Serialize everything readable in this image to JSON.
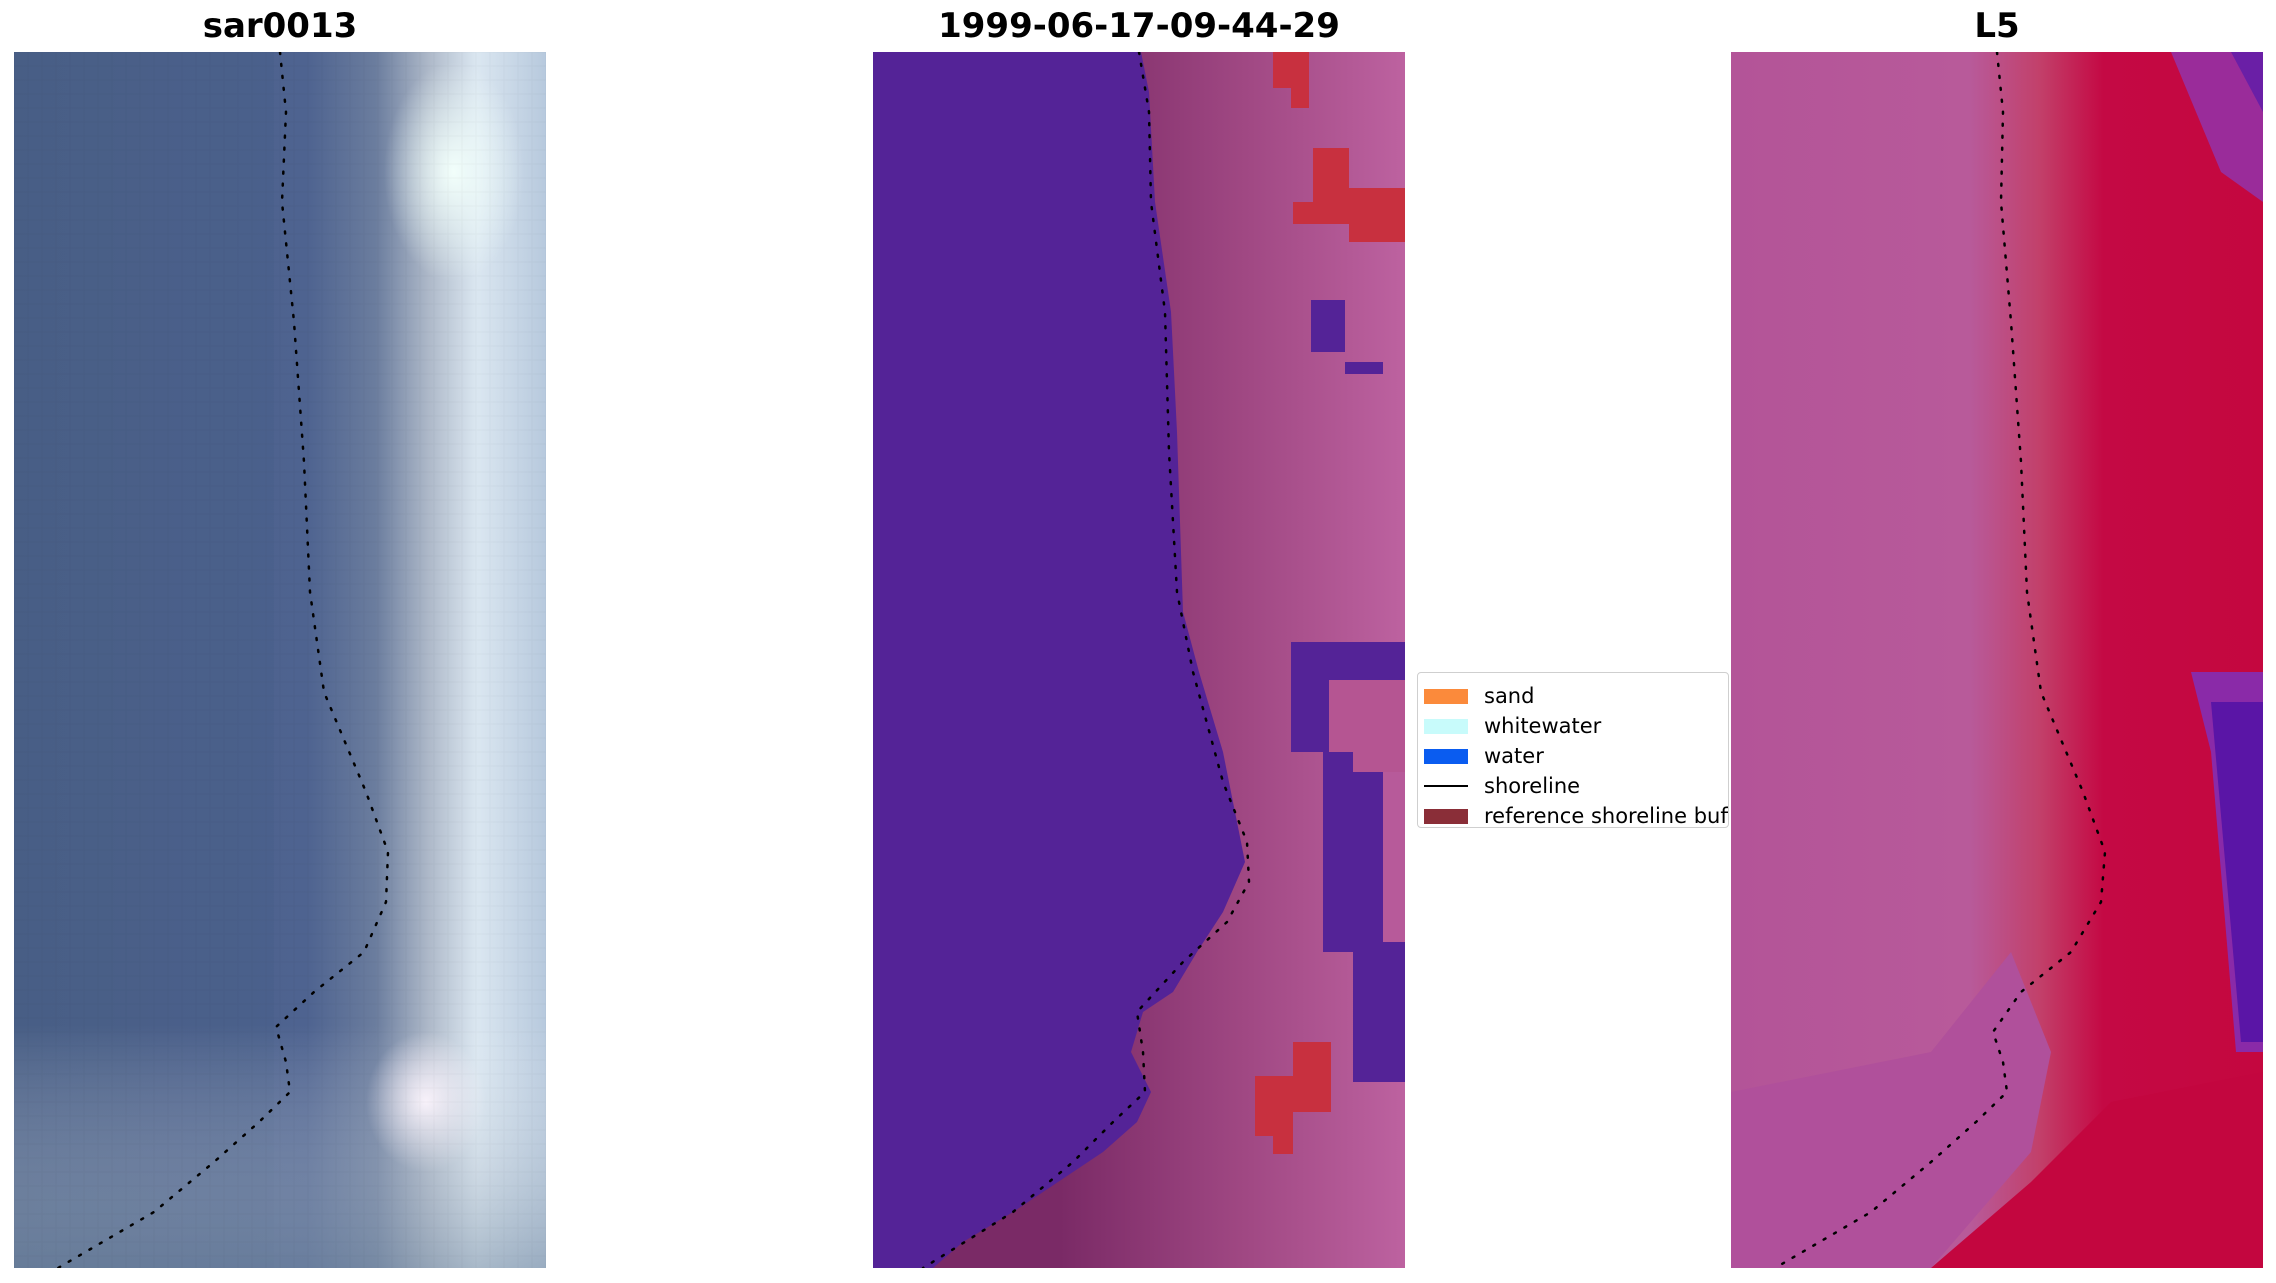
{
  "panels": [
    {
      "title": "sar0013"
    },
    {
      "title": "1999-06-17-09-44-29"
    },
    {
      "title": "L5"
    }
  ],
  "legend": {
    "items": [
      {
        "label": "sand",
        "color": "#fb8a3b",
        "kind": "patch"
      },
      {
        "label": "whitewater",
        "color": "#c8fbfb",
        "kind": "patch"
      },
      {
        "label": "water",
        "color": "#0a5cf0",
        "kind": "patch"
      },
      {
        "label": "shoreline",
        "color": "#000000",
        "kind": "line"
      },
      {
        "label": "reference shoreline buff",
        "color": "#8a2e38",
        "kind": "patch"
      }
    ]
  },
  "colors": {
    "sar_water": "#4a5f85",
    "sar_beach_light": "#dff2f7",
    "classified_water": "#542397",
    "classified_buffer": "#7a2a66",
    "classified_land": "#b75a9a",
    "classified_red": "#c8303f",
    "l5_land": "#b55a9a",
    "l5_red": "#c1063e",
    "l5_purple": "#6a1fa6",
    "shoreline_dots": "#000000"
  }
}
